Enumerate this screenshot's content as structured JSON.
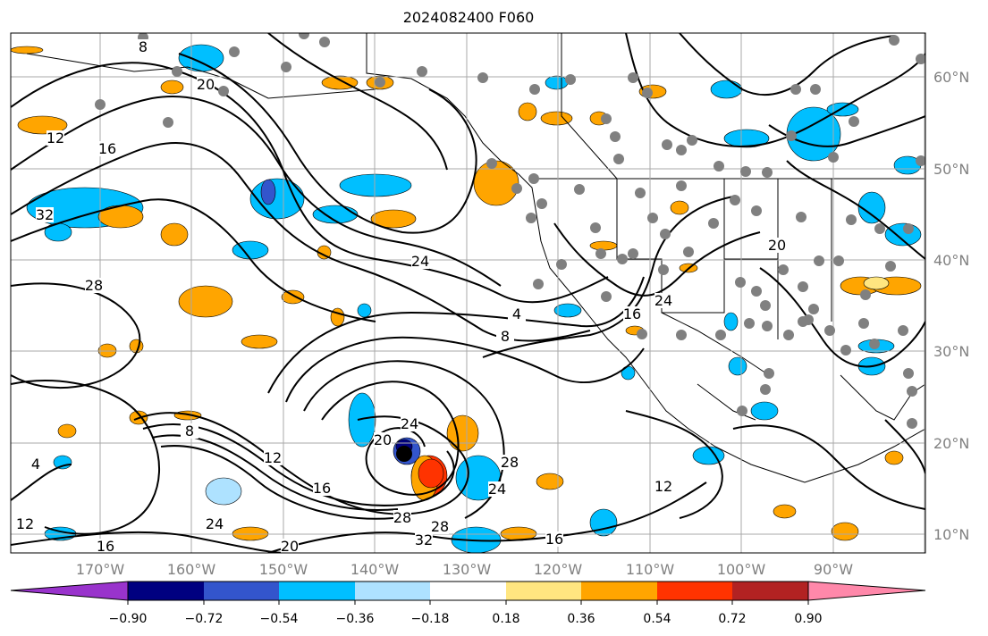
{
  "title": "2024082400 F060",
  "colors": {
    "ocean": "#ffffff",
    "grid": "#a0a0a0",
    "axis_labels": "#808080",
    "contour": "#000000",
    "stations": "#808080",
    "hurricane_center": "#000000"
  },
  "map": {
    "lon_labels": [
      "170°W",
      "160°W",
      "150°W",
      "140°W",
      "130°W",
      "120°W",
      "110°W",
      "100°W",
      "90°W"
    ],
    "lat_labels": [
      "60°N",
      "50°N",
      "40°N",
      "30°N",
      "20°N",
      "10°N"
    ],
    "contour_labels": [
      "8",
      "12",
      "16",
      "20",
      "24",
      "28",
      "32",
      "4",
      "12",
      "16",
      "8",
      "12",
      "16",
      "20",
      "24",
      "28",
      "24",
      "28",
      "32",
      "28",
      "24",
      "20",
      "16",
      "12",
      "4",
      "8",
      "16",
      "24",
      "20"
    ]
  },
  "colorbar": {
    "ticks": [
      "−0.90",
      "−0.72",
      "−0.54",
      "−0.36",
      "−0.18",
      "0.18",
      "0.36",
      "0.54",
      "0.72",
      "0.90"
    ],
    "colors": [
      "#9933cc",
      "#000080",
      "#3355cc",
      "#00bfff",
      "#aee2ff",
      "#ffffff",
      "#ffe680",
      "#ffa500",
      "#ff3300",
      "#b22222",
      "#ff88aa"
    ]
  }
}
